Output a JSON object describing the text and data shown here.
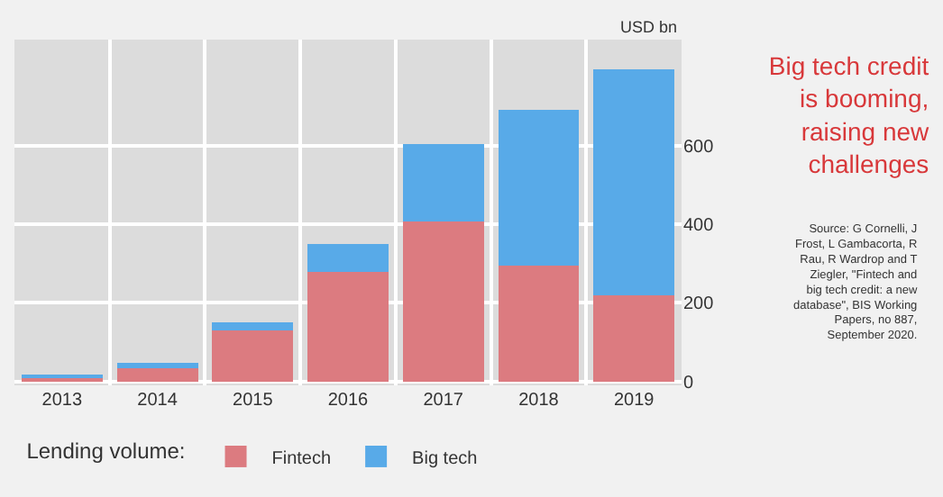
{
  "chart_data": {
    "type": "bar",
    "stacked": true,
    "title": "Big tech credit is booming, raising new challenges",
    "ylabel": "USD bn",
    "legend_title": "Lending volume:",
    "categories": [
      "2013",
      "2014",
      "2015",
      "2016",
      "2017",
      "2018",
      "2019"
    ],
    "series": [
      {
        "name": "Fintech",
        "color": "#dc7b80",
        "values": [
          8,
          33,
          130,
          279,
          406,
          295,
          220
        ]
      },
      {
        "name": "Big tech",
        "color": "#58aae8",
        "values": [
          10,
          15,
          21,
          71,
          199,
          396,
          575
        ]
      }
    ],
    "ylim": [
      -10,
      870
    ],
    "yticks": [
      0,
      200,
      400,
      600
    ],
    "grid": true,
    "legend": "bottom",
    "annotations": [
      "Source: G Cornelli, J Frost, L Gambacorta, R Rau, R Wardrop and T Ziegler, \"Fintech and big tech credit: a new database\", BIS Working Papers, no 887, September 2020."
    ]
  }
}
